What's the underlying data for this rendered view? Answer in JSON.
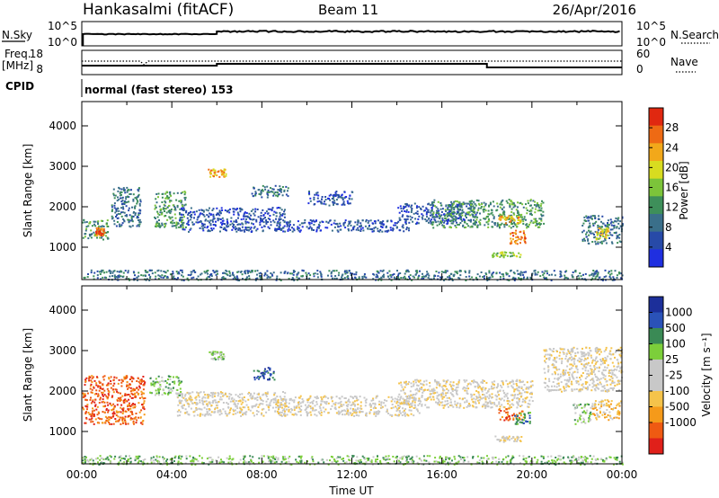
{
  "header": {
    "station": "Hankasalmi (fitACF)",
    "beam": "Beam 11",
    "date": "26/Apr/2016"
  },
  "strip": {
    "nsky_label": "N.Sky",
    "nsky_ticks": [
      "10^5",
      "10^0"
    ],
    "nsearch_label": "N.Search",
    "nsearch_ticks": [
      "10^5",
      "10^0"
    ],
    "freq_label_1": "Freq.",
    "freq_label_2": "[MHz]",
    "freq_ticks": [
      "18",
      "8"
    ],
    "nave_label": "Nave",
    "nave_ticks": [
      "60",
      "0"
    ],
    "cpid_label": "CPID",
    "cpid_text": "normal (fast stereo) 153"
  },
  "colors": {
    "power_scale": [
      "#1f2fe0",
      "#274aa8",
      "#3a6f8a",
      "#3e8f5a",
      "#7cc43a",
      "#d8dc20",
      "#f2a81a",
      "#ee6a14",
      "#e02810"
    ],
    "velocity_scale": [
      "#e0201a",
      "#ef5a12",
      "#f59a1a",
      "#f5c34a",
      "#c8c8c8",
      "#c8c8c8",
      "#7ccf3a",
      "#3a8a55",
      "#2a52b8",
      "#1c2f9a"
    ],
    "ground_scatter": "#c8c8c8"
  },
  "chart_data": [
    {
      "type": "heatmap",
      "name": "power-panel",
      "ylabel": "Slant Range [km]",
      "y_ticks": [
        "4000",
        "3000",
        "2000",
        "1000"
      ],
      "ylim": [
        200,
        4600
      ],
      "xlim": [
        0,
        24
      ],
      "colorbar_label": "Power [dB]",
      "colorbar_ticks": [
        "28",
        "24",
        "20",
        "16",
        "12",
        "8",
        "4"
      ],
      "colorbar_range": [
        0,
        32
      ],
      "features": [
        {
          "x": [
            0.0,
            1.2
          ],
          "y": [
            1200,
            1700
          ],
          "level": 3
        },
        {
          "x": [
            0.6,
            1.0
          ],
          "y": [
            1300,
            1500
          ],
          "level": 7
        },
        {
          "x": [
            1.3,
            2.6
          ],
          "y": [
            1500,
            2500
          ],
          "level": 2
        },
        {
          "x": [
            3.2,
            4.6
          ],
          "y": [
            1500,
            2400
          ],
          "level": 3
        },
        {
          "x": [
            5.6,
            6.4
          ],
          "y": [
            2750,
            2950
          ],
          "level": 6
        },
        {
          "x": [
            4.3,
            9.0
          ],
          "y": [
            1400,
            2000
          ],
          "level": 1
        },
        {
          "x": [
            7.5,
            9.2
          ],
          "y": [
            2250,
            2550
          ],
          "level": 2
        },
        {
          "x": [
            8.5,
            14.5
          ],
          "y": [
            1400,
            1700
          ],
          "level": 1
        },
        {
          "x": [
            10.0,
            12.0
          ],
          "y": [
            2050,
            2400
          ],
          "level": 1
        },
        {
          "x": [
            14.0,
            17.5
          ],
          "y": [
            1600,
            2100
          ],
          "level": 1
        },
        {
          "x": [
            15.5,
            20.5
          ],
          "y": [
            1500,
            2200
          ],
          "level": 3
        },
        {
          "x": [
            18.5,
            19.5
          ],
          "y": [
            1600,
            1800
          ],
          "level": 6
        },
        {
          "x": [
            19.0,
            19.7
          ],
          "y": [
            1100,
            1450
          ],
          "level": 7
        },
        {
          "x": [
            18.2,
            19.5
          ],
          "y": [
            770,
            900
          ],
          "level": 4
        },
        {
          "x": [
            22.2,
            24.0
          ],
          "y": [
            1100,
            1800
          ],
          "level": 2
        },
        {
          "x": [
            22.8,
            23.4
          ],
          "y": [
            1200,
            1500
          ],
          "level": 5
        },
        {
          "x": [
            0.0,
            24.0
          ],
          "y": [
            200,
            450
          ],
          "level": 2
        }
      ]
    },
    {
      "type": "heatmap",
      "name": "velocity-panel",
      "ylabel": "Slant Range [km]",
      "xlabel": "Time UT",
      "x_ticks": [
        "00:00",
        "04:00",
        "08:00",
        "12:00",
        "16:00",
        "20:00",
        "00:00"
      ],
      "y_ticks": [
        "4000",
        "3000",
        "2000",
        "1000"
      ],
      "ylim": [
        200,
        4600
      ],
      "xlim": [
        0,
        24
      ],
      "colorbar_label": "Velocity [m s⁻¹]",
      "colorbar_ticks": [
        "1000",
        "500",
        "100",
        "25",
        "-25",
        "-100",
        "-500",
        "-1000"
      ],
      "features": [
        {
          "x": [
            0.0,
            2.8
          ],
          "y": [
            1200,
            2400
          ],
          "level": 1
        },
        {
          "x": [
            3.0,
            4.4
          ],
          "y": [
            1900,
            2400
          ],
          "level": 6
        },
        {
          "x": [
            4.2,
            9.0
          ],
          "y": [
            1400,
            2000
          ],
          "level": 4
        },
        {
          "x": [
            5.6,
            6.3
          ],
          "y": [
            2800,
            3000
          ],
          "level": 6
        },
        {
          "x": [
            7.6,
            8.6
          ],
          "y": [
            2300,
            2600
          ],
          "level": 8
        },
        {
          "x": [
            8.5,
            15.0
          ],
          "y": [
            1400,
            1900
          ],
          "level": 4
        },
        {
          "x": [
            14.0,
            20.0
          ],
          "y": [
            1600,
            2300
          ],
          "level": 4
        },
        {
          "x": [
            18.5,
            19.6
          ],
          "y": [
            1300,
            1600
          ],
          "level": 1
        },
        {
          "x": [
            19.2,
            19.9
          ],
          "y": [
            1200,
            1500
          ],
          "level": 7
        },
        {
          "x": [
            18.3,
            19.5
          ],
          "y": [
            760,
            900
          ],
          "level": 4
        },
        {
          "x": [
            21.8,
            22.6
          ],
          "y": [
            1200,
            1700
          ],
          "level": 6
        },
        {
          "x": [
            22.6,
            24.0
          ],
          "y": [
            1300,
            1800
          ],
          "level": 3
        },
        {
          "x": [
            20.5,
            24.0
          ],
          "y": [
            2000,
            3100
          ],
          "level": 4
        },
        {
          "x": [
            0.0,
            24.0
          ],
          "y": [
            200,
            420
          ],
          "level": 6
        }
      ]
    }
  ]
}
